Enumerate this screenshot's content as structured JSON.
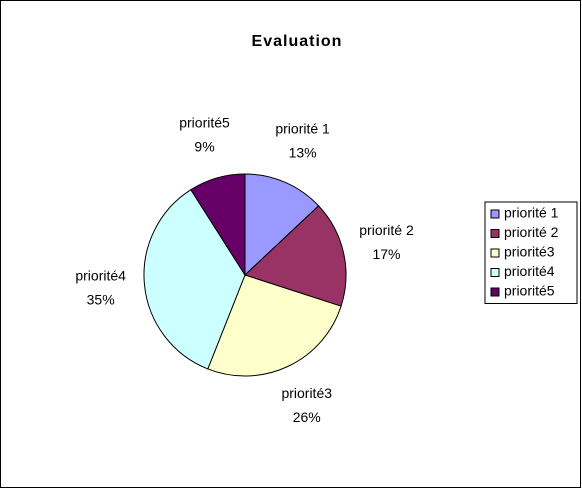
{
  "chart_data": {
    "type": "pie",
    "title": "Evaluation",
    "categories": [
      "priorité 1",
      "priorité 2",
      "priorité3",
      "priorité4",
      "priorité5"
    ],
    "values": [
      13,
      17,
      26,
      35,
      9
    ],
    "value_labels": [
      "13%",
      "17%",
      "26%",
      "35%",
      "9%"
    ],
    "colors": [
      "#9999ff",
      "#993366",
      "#ffffcc",
      "#ccffff",
      "#660066"
    ],
    "legend": "right"
  }
}
